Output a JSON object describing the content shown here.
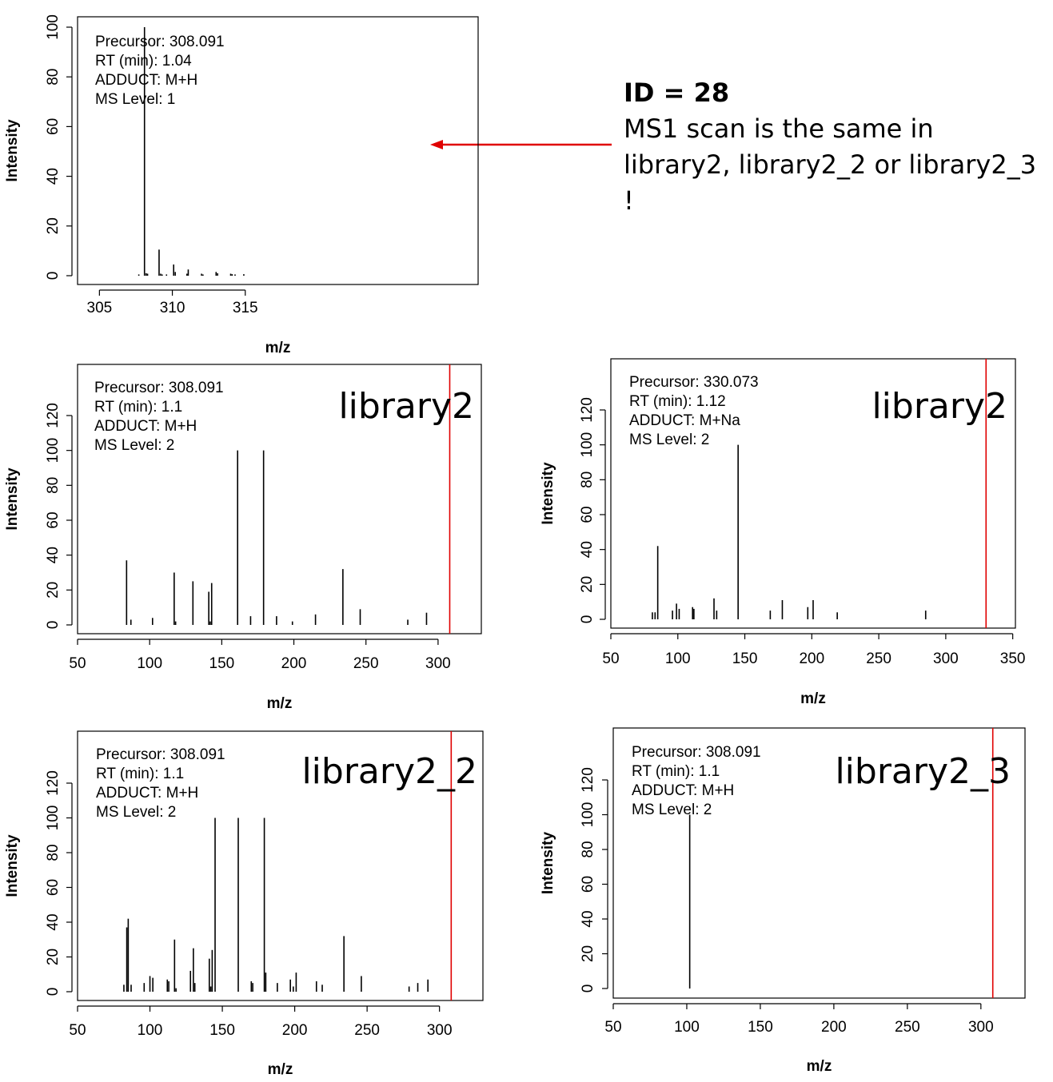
{
  "annotation": {
    "title": "ID = 28",
    "body": "MS1 scan is the same in library2, library2_2 or library2_3 !",
    "arrow_color": "#e00000"
  },
  "chart_data": [
    {
      "type": "bar",
      "id": "ms1",
      "xlabel": "m/z",
      "ylabel": "Intensity",
      "xlim": [
        303.5,
        317.7
      ],
      "ylim": [
        0,
        100
      ],
      "xticks": [
        305,
        310,
        315
      ],
      "yticks": [
        0,
        20,
        40,
        60,
        80,
        100
      ],
      "info": [
        "Precursor: 308.091",
        "RT (min): 1.04",
        "ADDUCT: M+H",
        "MS Level: 1"
      ],
      "library_label": "",
      "precursor_line": null,
      "peaks": [
        [
          307.7,
          0.5
        ],
        [
          308.09,
          100
        ],
        [
          308.2,
          1
        ],
        [
          308.3,
          0.8
        ],
        [
          309.09,
          10.5
        ],
        [
          309.2,
          0.8
        ],
        [
          309.3,
          0.5
        ],
        [
          309.6,
          0.5
        ],
        [
          310.09,
          4.5
        ],
        [
          310.2,
          1.5
        ],
        [
          311.09,
          2.5
        ],
        [
          311.0,
          0.8
        ],
        [
          312.0,
          0.8
        ],
        [
          312.1,
          0.5
        ],
        [
          313.0,
          1.5
        ],
        [
          313.1,
          1
        ],
        [
          314.0,
          0.8
        ],
        [
          314.1,
          0.6
        ],
        [
          314.3,
          0.5
        ],
        [
          314.9,
          0.6
        ]
      ]
    },
    {
      "type": "bar",
      "id": "library2-a",
      "xlabel": "m/z",
      "ylabel": "Intensity",
      "xlim": [
        50,
        330
      ],
      "ylim": [
        0,
        120
      ],
      "xticks": [
        50,
        100,
        150,
        200,
        250,
        300
      ],
      "yticks": [
        0,
        20,
        40,
        60,
        80,
        100,
        120
      ],
      "info": [
        "Precursor: 308.091",
        "RT (min): 1.1",
        "ADDUCT: M+H",
        "MS Level: 2"
      ],
      "library_label": "library2",
      "precursor_line": 308.091,
      "peaks": [
        [
          84,
          37
        ],
        [
          87,
          3
        ],
        [
          102,
          4
        ],
        [
          117,
          30
        ],
        [
          118,
          2
        ],
        [
          130,
          25
        ],
        [
          141,
          19
        ],
        [
          142,
          2
        ],
        [
          143,
          24
        ],
        [
          161,
          100
        ],
        [
          170,
          5
        ],
        [
          179,
          100
        ],
        [
          188,
          5
        ],
        [
          199,
          2
        ],
        [
          215,
          6
        ],
        [
          234,
          32
        ],
        [
          246,
          9
        ],
        [
          279,
          3
        ],
        [
          292,
          7
        ]
      ]
    },
    {
      "type": "bar",
      "id": "library2-b",
      "xlabel": "m/z",
      "ylabel": "Intensity",
      "xlim": [
        50,
        352
      ],
      "ylim": [
        0,
        120
      ],
      "xticks": [
        50,
        100,
        150,
        200,
        250,
        300,
        350
      ],
      "yticks": [
        0,
        20,
        40,
        60,
        80,
        100,
        120
      ],
      "info": [
        "Precursor: 330.073",
        "RT (min): 1.12",
        "ADDUCT: M+Na",
        "MS Level: 2"
      ],
      "library_label": "library2",
      "precursor_line": 330.073,
      "peaks": [
        [
          81,
          4
        ],
        [
          83,
          4
        ],
        [
          85,
          42
        ],
        [
          96,
          5
        ],
        [
          99,
          9
        ],
        [
          101,
          6
        ],
        [
          111,
          7
        ],
        [
          112,
          6
        ],
        [
          127,
          12
        ],
        [
          129,
          5
        ],
        [
          145,
          100
        ],
        [
          169,
          5
        ],
        [
          178,
          11
        ],
        [
          197,
          7
        ],
        [
          201,
          11
        ],
        [
          219,
          4
        ],
        [
          285,
          5
        ]
      ]
    },
    {
      "type": "bar",
      "id": "library2-2",
      "xlabel": "m/z",
      "ylabel": "Intensity",
      "xlim": [
        50,
        330
      ],
      "ylim": [
        0,
        120
      ],
      "xticks": [
        50,
        100,
        150,
        200,
        250,
        300
      ],
      "yticks": [
        0,
        20,
        40,
        60,
        80,
        100,
        120
      ],
      "info": [
        "Precursor: 308.091",
        "RT (min): 1.1",
        "ADDUCT: M+H",
        "MS Level: 2"
      ],
      "library_label": "library2_2",
      "precursor_line": 308.091,
      "peaks": [
        [
          82,
          4
        ],
        [
          84,
          37
        ],
        [
          85,
          42
        ],
        [
          87,
          4
        ],
        [
          96,
          5
        ],
        [
          100,
          9
        ],
        [
          102,
          8
        ],
        [
          112,
          7
        ],
        [
          113,
          6
        ],
        [
          117,
          30
        ],
        [
          118,
          2
        ],
        [
          128,
          12
        ],
        [
          130,
          25
        ],
        [
          131,
          5
        ],
        [
          141,
          19
        ],
        [
          142,
          3
        ],
        [
          143,
          24
        ],
        [
          145,
          100
        ],
        [
          161,
          100
        ],
        [
          170,
          6
        ],
        [
          171,
          5
        ],
        [
          179,
          100
        ],
        [
          180,
          11
        ],
        [
          188,
          5
        ],
        [
          197,
          7
        ],
        [
          199,
          3
        ],
        [
          201,
          11
        ],
        [
          215,
          6
        ],
        [
          219,
          4
        ],
        [
          234,
          32
        ],
        [
          246,
          9
        ],
        [
          279,
          3
        ],
        [
          285,
          5
        ],
        [
          292,
          7
        ]
      ]
    },
    {
      "type": "bar",
      "id": "library2-3",
      "xlabel": "m/z",
      "ylabel": "Intensity",
      "xlim": [
        50,
        330
      ],
      "ylim": [
        0,
        120
      ],
      "xticks": [
        50,
        100,
        150,
        200,
        250,
        300
      ],
      "yticks": [
        0,
        20,
        40,
        60,
        80,
        100,
        120
      ],
      "info": [
        "Precursor: 308.091",
        "RT (min): 1.1",
        "ADDUCT: M+H",
        "MS Level: 2"
      ],
      "library_label": "library2_3",
      "precursor_line": 308.091,
      "peaks": [
        [
          102,
          100
        ]
      ]
    }
  ]
}
